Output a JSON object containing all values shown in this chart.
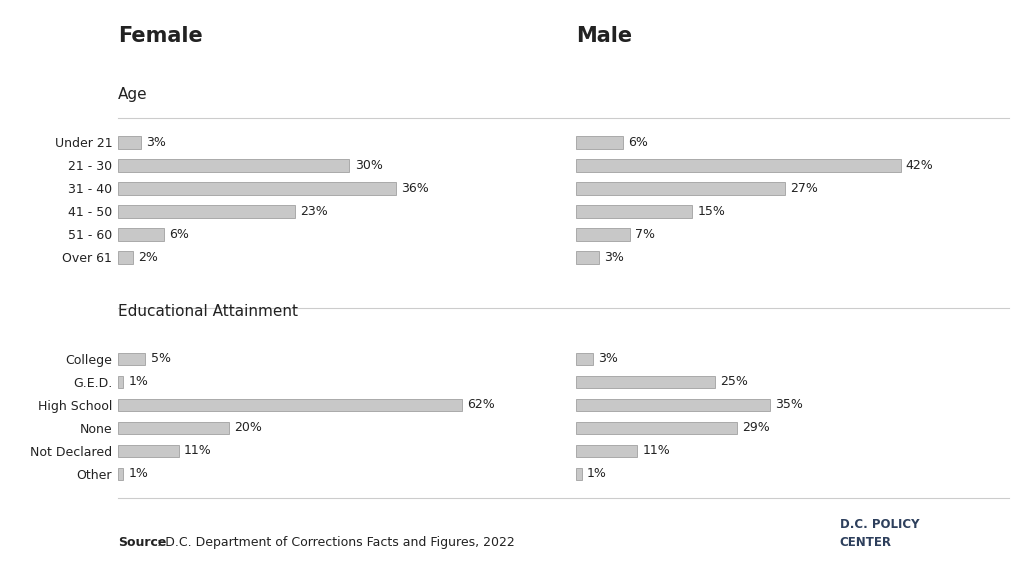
{
  "female_age_labels": [
    "Under 21",
    "21 - 30",
    "31 - 40",
    "41 - 50",
    "51 - 60",
    "Over 61"
  ],
  "female_age_values": [
    3,
    30,
    36,
    23,
    6,
    2
  ],
  "male_age_labels": [
    "Under 21",
    "21 - 30",
    "31 - 40",
    "41 - 50",
    "51 - 60",
    "Over 61"
  ],
  "male_age_values": [
    6,
    42,
    27,
    15,
    7,
    3
  ],
  "female_edu_labels": [
    "College",
    "G.E.D.",
    "High School",
    "None",
    "Not Declared",
    "Other"
  ],
  "female_edu_values": [
    5,
    1,
    62,
    20,
    11,
    1
  ],
  "male_edu_labels": [
    "College",
    "G.E.D.",
    "High School",
    "None",
    "Not Declared",
    "Other"
  ],
  "male_edu_values": [
    3,
    25,
    35,
    29,
    11,
    1
  ],
  "bar_color": "#c8c8c8",
  "bar_edge_color": "#aaaaaa",
  "female_title": "Female",
  "male_title": "Male",
  "age_section": "Age",
  "edu_section": "Educational Attainment",
  "source_bold": "Source",
  "source_rest": ": D.C. Department of Corrections Facts and Figures, 2022",
  "bg_color": "#ffffff",
  "text_color": "#222222",
  "grid_color": "#dddddd",
  "title_fontsize": 15,
  "section_fontsize": 11,
  "label_fontsize": 9,
  "value_fontsize": 9,
  "source_fontsize": 9,
  "age_xlim_female": 56,
  "age_xlim_male": 56,
  "edu_xlim_female": 78,
  "edu_xlim_male": 78
}
